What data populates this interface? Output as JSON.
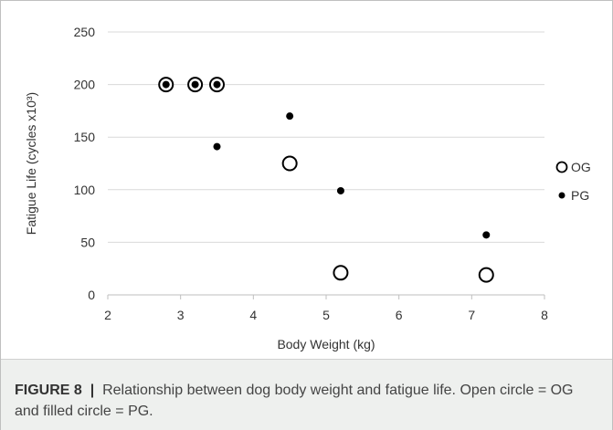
{
  "caption": {
    "label": "FIGURE 8",
    "separator": "|",
    "text": "Relationship between dog body weight and fatigue life. Open circle = OG and filled circle = PG."
  },
  "chart_data": {
    "type": "scatter",
    "xlabel": "Body Weight (kg)",
    "ylabel": "Fatigue Life (cycles x10³)",
    "xlim": [
      2,
      8
    ],
    "ylim": [
      0,
      250
    ],
    "xticks": [
      "2",
      "3",
      "4",
      "5",
      "6",
      "7",
      "8"
    ],
    "yticks": [
      "0",
      "50",
      "100",
      "150",
      "200",
      "250"
    ],
    "grid": "horizontal",
    "legend_position": "right",
    "series": [
      {
        "name": "OG",
        "marker": "open-circle",
        "color": "#000000",
        "points": [
          [
            2.8,
            200
          ],
          [
            3.2,
            200
          ],
          [
            3.5,
            200
          ],
          [
            4.5,
            125
          ],
          [
            5.2,
            21
          ],
          [
            7.2,
            19
          ]
        ]
      },
      {
        "name": "PG",
        "marker": "filled-circle",
        "color": "#000000",
        "points": [
          [
            2.8,
            200
          ],
          [
            3.2,
            200
          ],
          [
            3.5,
            200
          ],
          [
            3.5,
            141
          ],
          [
            4.5,
            170
          ],
          [
            5.2,
            99
          ],
          [
            7.2,
            57
          ]
        ]
      }
    ]
  }
}
